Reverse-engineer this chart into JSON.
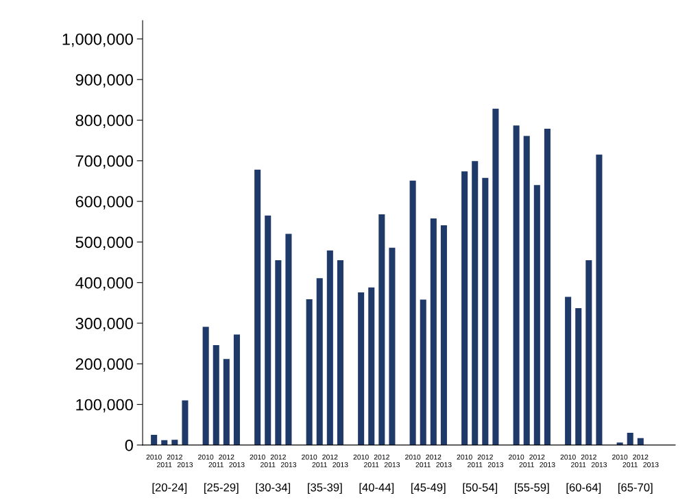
{
  "chart_data": {
    "type": "bar",
    "categories": [
      "[20-24]",
      "[25-29]",
      "[30-34]",
      "[35-39]",
      "[40-44]",
      "[45-49]",
      "[50-54]",
      "[55-59]",
      "[60-64]",
      "[65-70]"
    ],
    "series": [
      {
        "name": "2010",
        "color": "#1f3a68",
        "values": [
          25000,
          291000,
          678000,
          359000,
          376000,
          651000,
          674000,
          787000,
          365000,
          6000
        ]
      },
      {
        "name": "2011",
        "color": "#1f3a68",
        "values": [
          12000,
          246000,
          565000,
          411000,
          388000,
          358000,
          699000,
          761000,
          337000,
          30000
        ]
      },
      {
        "name": "2012",
        "color": "#1f3a68",
        "values": [
          13000,
          212000,
          455000,
          479000,
          568000,
          558000,
          658000,
          640000,
          455000,
          17000
        ]
      },
      {
        "name": "2013",
        "color": "#1f3a68",
        "values": [
          110000,
          272000,
          520000,
          455000,
          486000,
          541000,
          828000,
          779000,
          715000,
          0
        ]
      }
    ],
    "ylim": [
      0,
      1045000
    ],
    "yticks": [
      0,
      {
        "value": 100000,
        "label": "100,000"
      },
      {
        "value": 200000,
        "label": "200,000"
      },
      {
        "value": 300000,
        "label": "300,000"
      },
      {
        "value": 400000,
        "label": "400,000"
      },
      {
        "value": 500000,
        "label": "500,000"
      },
      {
        "value": 600000,
        "label": "600,000"
      },
      {
        "value": 700000,
        "label": "700,000"
      },
      {
        "value": 800000,
        "label": "800,000"
      },
      {
        "value": 900000,
        "label": "900,000"
      },
      {
        "value": 1000000,
        "label": "1,000,000"
      }
    ],
    "grid": false,
    "legend": false
  }
}
